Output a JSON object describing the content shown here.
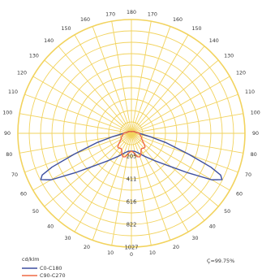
{
  "chart_data": {
    "type": "polar",
    "unit_label": "cd/klm",
    "efficiency_label": "Ç=99.75%",
    "angle_ticks": [
      "180",
      "170",
      "160",
      "150",
      "140",
      "130",
      "120",
      "110",
      "100",
      "90",
      "80",
      "70",
      "60",
      "50",
      "40",
      "30",
      "20",
      "10",
      "0"
    ],
    "radial_ticks": [
      {
        "value": 205,
        "label": "205"
      },
      {
        "value": 411,
        "label": "411"
      },
      {
        "value": 616,
        "label": "616"
      },
      {
        "value": 822,
        "label": "822"
      },
      {
        "value": 1027,
        "label": "1027"
      }
    ],
    "rmax": 1027,
    "grid": true,
    "legend_position": "bottom-left",
    "series": [
      {
        "name": "C0-C180",
        "color": "#3d4fa0",
        "points": [
          [
            0,
            160
          ],
          [
            10,
            165
          ],
          [
            20,
            190
          ],
          [
            30,
            240
          ],
          [
            40,
            320
          ],
          [
            45,
            380
          ],
          [
            50,
            470
          ],
          [
            55,
            620
          ],
          [
            60,
            840
          ],
          [
            63,
            920
          ],
          [
            65,
            890
          ],
          [
            67,
            780
          ],
          [
            70,
            550
          ],
          [
            75,
            320
          ],
          [
            80,
            170
          ],
          [
            85,
            100
          ],
          [
            90,
            70
          ],
          [
            100,
            45
          ],
          [
            120,
            30
          ],
          [
            150,
            20
          ],
          [
            180,
            15
          ]
        ]
      },
      {
        "name": "C90-C270",
        "color": "#ef6a45",
        "points": [
          [
            0,
            160
          ],
          [
            5,
            170
          ],
          [
            10,
            190
          ],
          [
            15,
            220
          ],
          [
            20,
            225
          ],
          [
            25,
            205
          ],
          [
            30,
            175
          ],
          [
            35,
            165
          ],
          [
            40,
            175
          ],
          [
            45,
            175
          ],
          [
            50,
            150
          ],
          [
            55,
            125
          ],
          [
            60,
            110
          ],
          [
            70,
            95
          ],
          [
            80,
            80
          ],
          [
            90,
            70
          ],
          [
            100,
            45
          ],
          [
            120,
            30
          ],
          [
            150,
            20
          ],
          [
            180,
            15
          ]
        ]
      }
    ]
  }
}
